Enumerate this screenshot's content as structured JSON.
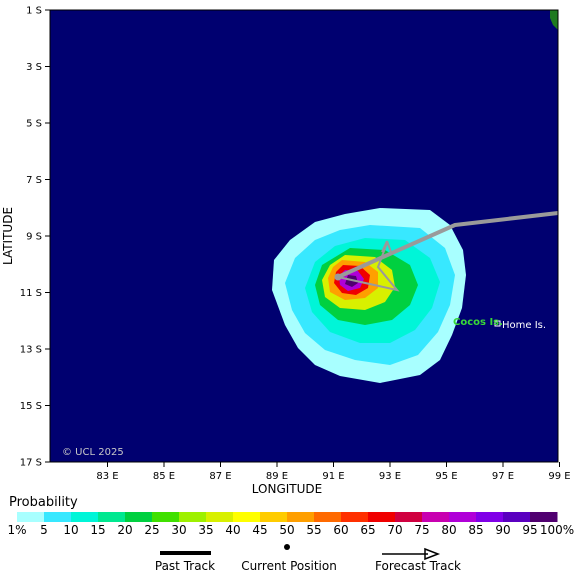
{
  "map": {
    "lat_labels": [
      "1 S",
      "3 S",
      "5 S",
      "7 S",
      "9 S",
      "11 S",
      "13 S",
      "15 S",
      "17 S"
    ],
    "lon_labels": [
      "83 E",
      "85 E",
      "87 E",
      "89 E",
      "91 E",
      "93 E",
      "95 E",
      "97 E",
      "99 E"
    ],
    "xlabel": "LONGITUDE",
    "ylabel": "LATITUDE",
    "copyright": "© UCL 2025",
    "place_labels": {
      "cocos": "Cocos Is.",
      "home": "Home Is."
    },
    "ocean_color": "#000070",
    "land_color": "#1f7a1f",
    "track_color": "#9a9a9a"
  },
  "colorbar": {
    "title": "Probability",
    "labels": [
      "1%",
      "5",
      "10",
      "15",
      "20",
      "25",
      "30",
      "35",
      "40",
      "45",
      "50",
      "55",
      "60",
      "65",
      "70",
      "75",
      "80",
      "85",
      "90",
      "95",
      "100%"
    ],
    "colors": [
      "#a8ffff",
      "#38e8ff",
      "#00f5d8",
      "#00e890",
      "#00d040",
      "#40e000",
      "#9ef000",
      "#d8f000",
      "#ffff00",
      "#ffcc00",
      "#ff9f00",
      "#ff6a00",
      "#ff3000",
      "#f00000",
      "#d00040",
      "#c800b0",
      "#b000d8",
      "#8000e8",
      "#5a00c0",
      "#500070"
    ]
  },
  "legend": {
    "past_track": "Past Track",
    "current_position": "Current Position",
    "forecast_track": "Forecast Track"
  }
}
